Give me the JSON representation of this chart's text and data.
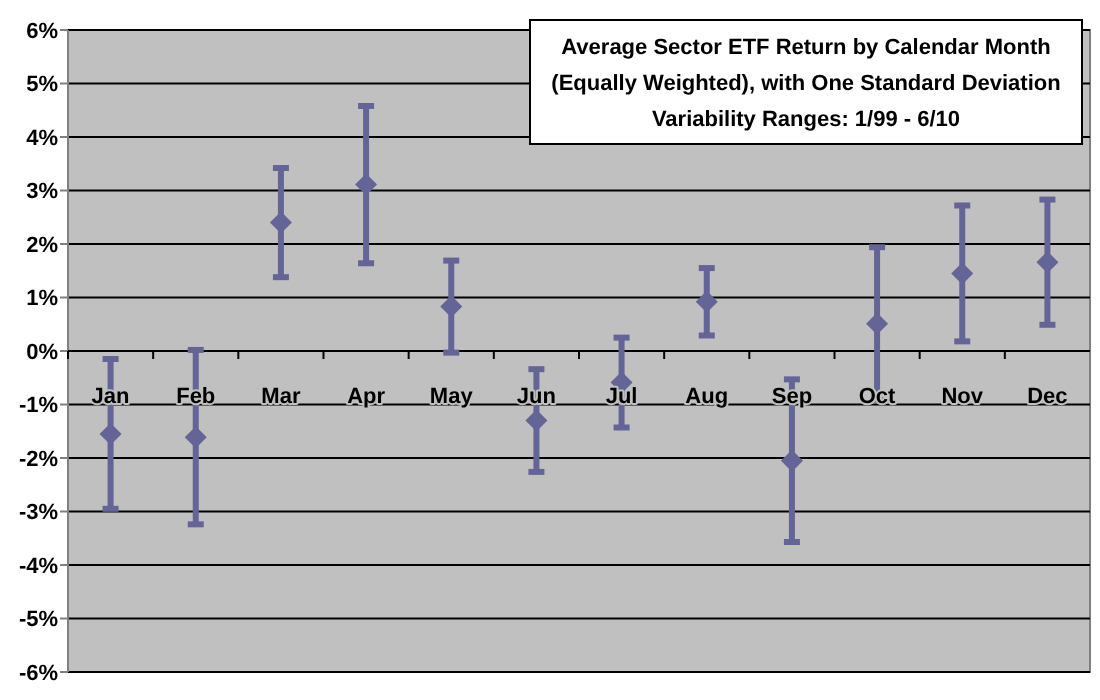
{
  "chart_data": {
    "type": "scatter",
    "title": "Average Sector ETF Return by Calendar Month (Equally Weighted), with One Standard Deviation Variability Ranges: 1/99 - 6/10",
    "categories": [
      "Jan",
      "Feb",
      "Mar",
      "Apr",
      "May",
      "Jun",
      "Jul",
      "Aug",
      "Sep",
      "Oct",
      "Nov",
      "Dec"
    ],
    "series": [
      {
        "color": "#646496",
        "values": [
          -1.55,
          -1.61,
          2.4,
          3.11,
          0.83,
          -1.3,
          -0.59,
          0.92,
          -2.05,
          0.51,
          1.45,
          1.66
        ],
        "errors": [
          1.4,
          1.63,
          1.02,
          1.47,
          0.86,
          0.96,
          0.84,
          0.63,
          1.52,
          1.43,
          1.27,
          1.17
        ]
      }
    ],
    "ylim": [
      -6,
      6
    ],
    "yticks": [
      {
        "value": -6,
        "label": "-6%"
      },
      {
        "value": -5,
        "label": "-5%"
      },
      {
        "value": -4,
        "label": "-4%"
      },
      {
        "value": -3,
        "label": "-3%"
      },
      {
        "value": -2,
        "label": "-2%"
      },
      {
        "value": -1,
        "label": "-1%"
      },
      {
        "value": 0,
        "label": "0%"
      },
      {
        "value": 1,
        "label": "1%"
      },
      {
        "value": 2,
        "label": "2%"
      },
      {
        "value": 3,
        "label": "3%"
      },
      {
        "value": 4,
        "label": "4%"
      },
      {
        "value": 5,
        "label": "5%"
      },
      {
        "value": 6,
        "label": "6%"
      }
    ],
    "grid": "y",
    "marker": "diamond"
  }
}
